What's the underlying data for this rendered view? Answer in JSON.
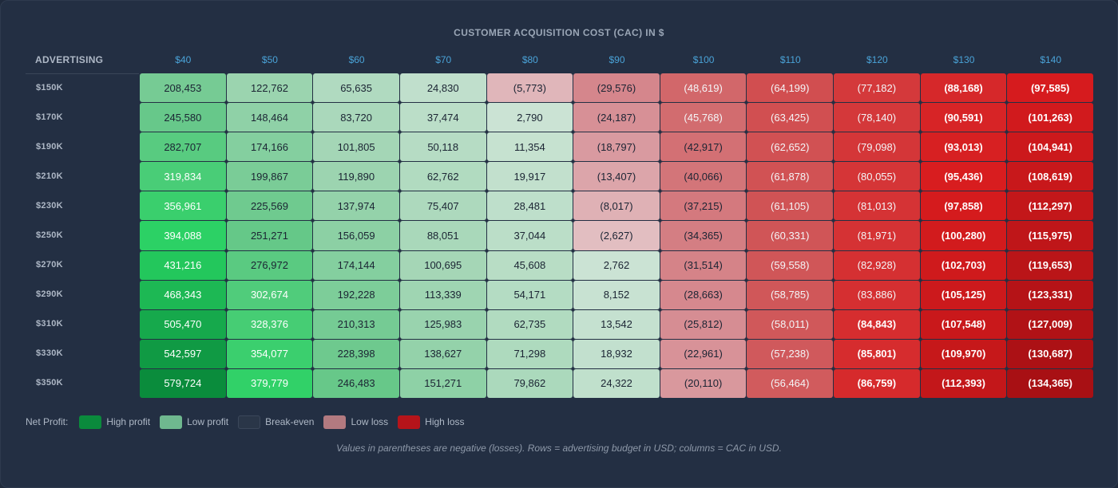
{
  "chart_data": {
    "type": "heatmap",
    "title": "CUSTOMER ACQUISITION COST (CAC) IN $",
    "row_header": "ADVERTISING",
    "columns": [
      "$40",
      "$50",
      "$60",
      "$70",
      "$80",
      "$90",
      "$100",
      "$110",
      "$120",
      "$130",
      "$140"
    ],
    "rows": [
      "$150K",
      "$170K",
      "$190K",
      "$210K",
      "$230K",
      "$250K",
      "$270K",
      "$290K",
      "$310K",
      "$330K",
      "$350K"
    ],
    "values": [
      [
        208453,
        122762,
        65635,
        24830,
        -5773,
        -29576,
        -48619,
        -64199,
        -77182,
        -88168,
        -97585
      ],
      [
        245580,
        148464,
        83720,
        37474,
        2790,
        -24187,
        -45768,
        -63425,
        -78140,
        -90591,
        -101263
      ],
      [
        282707,
        174166,
        101805,
        50118,
        11354,
        -18797,
        -42917,
        -62652,
        -79098,
        -93013,
        -104941
      ],
      [
        319834,
        199867,
        119890,
        62762,
        19917,
        -13407,
        -40066,
        -61878,
        -80055,
        -95436,
        -108619
      ],
      [
        356961,
        225569,
        137974,
        75407,
        28481,
        -8017,
        -37215,
        -61105,
        -81013,
        -97858,
        -112297
      ],
      [
        394088,
        251271,
        156059,
        88051,
        37044,
        -2627,
        -34365,
        -60331,
        -81971,
        -100280,
        -115975
      ],
      [
        431216,
        276972,
        174144,
        100695,
        45608,
        2762,
        -31514,
        -59558,
        -82928,
        -102703,
        -119653
      ],
      [
        468343,
        302674,
        192228,
        113339,
        54171,
        8152,
        -28663,
        -58785,
        -83886,
        -105125,
        -123331
      ],
      [
        505470,
        328376,
        210313,
        125983,
        62735,
        13542,
        -25812,
        -58011,
        -84843,
        -107548,
        -127009
      ],
      [
        542597,
        354077,
        228398,
        138627,
        71298,
        18932,
        -22961,
        -57238,
        -85801,
        -109970,
        -130687
      ],
      [
        579724,
        379779,
        246483,
        151271,
        79862,
        24322,
        -20110,
        -56464,
        -86759,
        -112393,
        -134365
      ]
    ],
    "units": "USD",
    "negative_format": "parentheses"
  },
  "legend": {
    "title": "Net Profit:",
    "items": [
      {
        "label": "High profit",
        "color": "#0a8a3c"
      },
      {
        "label": "Low profit",
        "color": "#6fb88f"
      },
      {
        "label": "Break-even",
        "color": "#2a3648"
      },
      {
        "label": "Low loss",
        "color": "#b27a80"
      },
      {
        "label": "High loss",
        "color": "#b5141a"
      }
    ]
  },
  "note": "Values in parentheses are negative (losses). Rows = advertising budget in USD; columns = CAC in USD."
}
